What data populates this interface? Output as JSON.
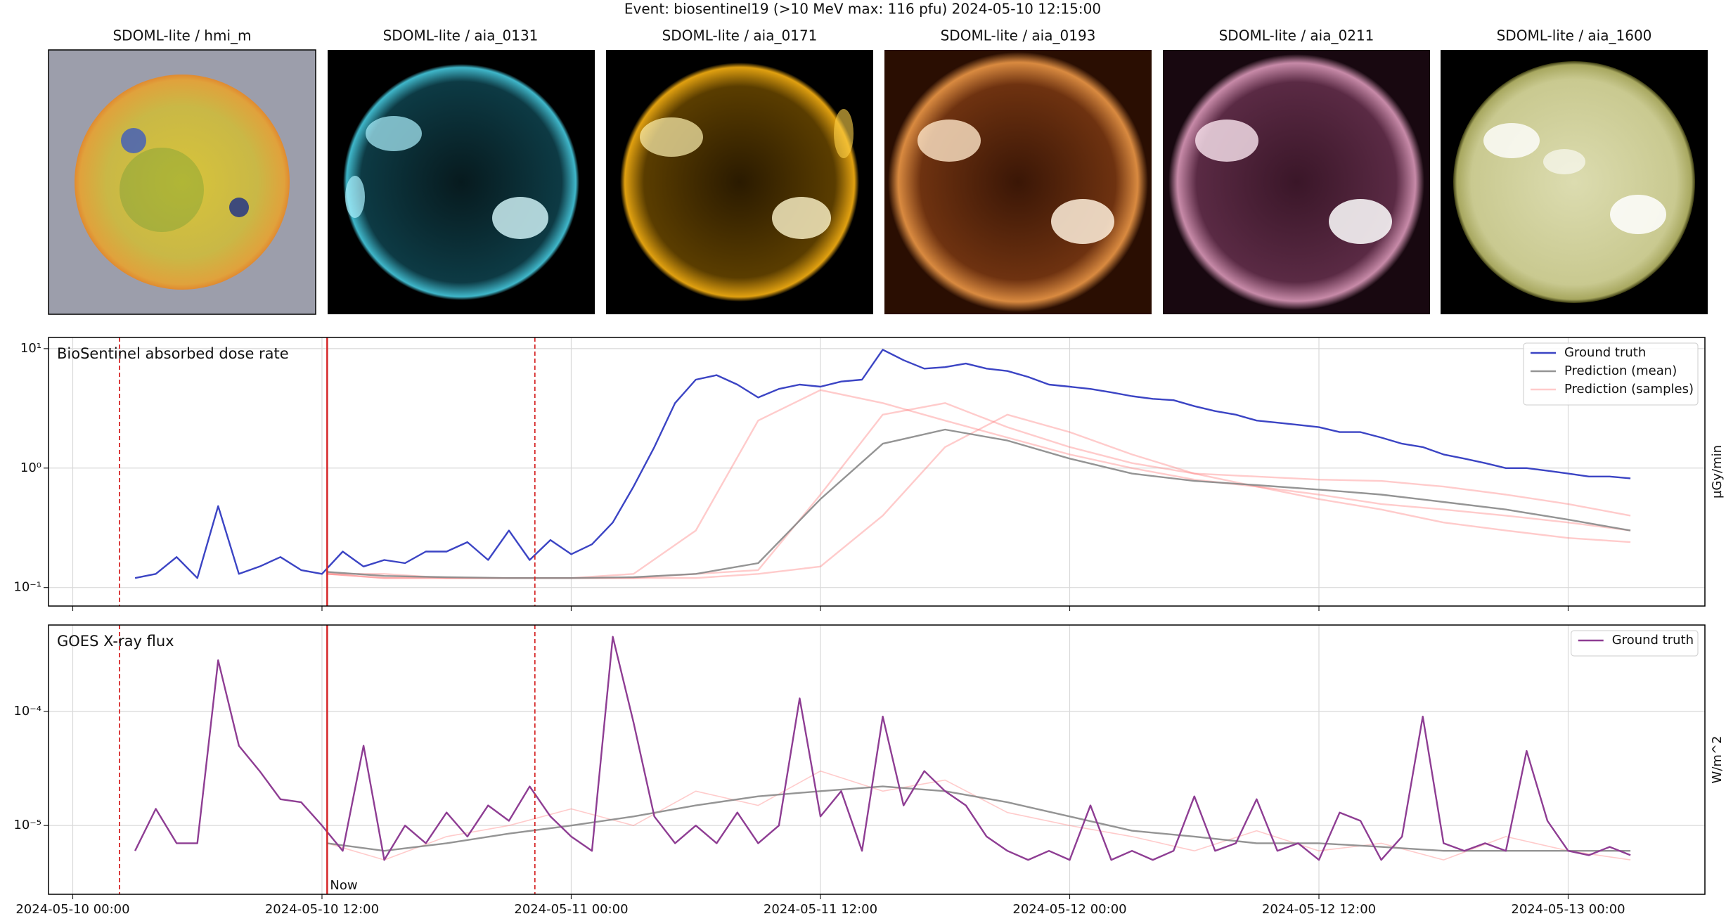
{
  "title": "Event: biosentinel19 (>10 MeV max: 116 pfu) 2024-05-10 12:15:00",
  "panels": [
    {
      "title": "SDOML-lite / hmi_m"
    },
    {
      "title": "SDOML-lite / aia_0131"
    },
    {
      "title": "SDOML-lite / aia_0171"
    },
    {
      "title": "SDOML-lite / aia_0193"
    },
    {
      "title": "SDOML-lite / aia_0211"
    },
    {
      "title": "SDOML-lite / aia_1600"
    }
  ],
  "chart_data": [
    {
      "type": "line",
      "title": "BioSentinel absorbed dose rate",
      "ylabel": "µGy/min",
      "yscale": "log",
      "grid": true,
      "legend": "upper right",
      "show_xtick_labels": false,
      "xlim": [
        "2024-05-09 22:50",
        "2024-05-13 06:35"
      ],
      "xticks": [
        "2024-05-10 00:00",
        "2024-05-10 12:00",
        "2024-05-11 00:00",
        "2024-05-11 12:00",
        "2024-05-12 00:00",
        "2024-05-12 12:00",
        "2024-05-13 00:00"
      ],
      "ylim": [
        0.07,
        12.4
      ],
      "yticks": [
        {
          "value": 0.1,
          "label": "10⁻¹"
        },
        {
          "value": 1,
          "label": "10⁰"
        },
        {
          "value": 10,
          "label": "10¹"
        }
      ],
      "vlines": [
        {
          "x": "2024-05-10 02:15",
          "color": "#d62728",
          "style": "dashed"
        },
        {
          "x": "2024-05-10 12:15",
          "color": "#d62728",
          "style": "solid"
        },
        {
          "x": "2024-05-10 22:15",
          "color": "#d62728",
          "style": "dashed"
        }
      ],
      "x": [
        "2024-05-10 03:00",
        "2024-05-10 04:00",
        "2024-05-10 05:00",
        "2024-05-10 06:00",
        "2024-05-10 07:00",
        "2024-05-10 08:00",
        "2024-05-10 09:00",
        "2024-05-10 10:00",
        "2024-05-10 11:00",
        "2024-05-10 12:00",
        "2024-05-10 13:00",
        "2024-05-10 14:00",
        "2024-05-10 15:00",
        "2024-05-10 16:00",
        "2024-05-10 17:00",
        "2024-05-10 18:00",
        "2024-05-10 19:00",
        "2024-05-10 20:00",
        "2024-05-10 21:00",
        "2024-05-10 22:00",
        "2024-05-10 23:00",
        "2024-05-11 00:00",
        "2024-05-11 01:00",
        "2024-05-11 02:00",
        "2024-05-11 03:00",
        "2024-05-11 04:00",
        "2024-05-11 05:00",
        "2024-05-11 06:00",
        "2024-05-11 07:00",
        "2024-05-11 08:00",
        "2024-05-11 09:00",
        "2024-05-11 10:00",
        "2024-05-11 11:00",
        "2024-05-11 12:00",
        "2024-05-11 13:00",
        "2024-05-11 14:00",
        "2024-05-11 15:00",
        "2024-05-11 16:00",
        "2024-05-11 17:00",
        "2024-05-11 18:00",
        "2024-05-11 19:00",
        "2024-05-11 20:00",
        "2024-05-11 21:00",
        "2024-05-11 22:00",
        "2024-05-11 23:00",
        "2024-05-12 00:00",
        "2024-05-12 01:00",
        "2024-05-12 02:00",
        "2024-05-12 03:00",
        "2024-05-12 04:00",
        "2024-05-12 05:00",
        "2024-05-12 06:00",
        "2024-05-12 07:00",
        "2024-05-12 08:00",
        "2024-05-12 09:00",
        "2024-05-12 10:00",
        "2024-05-12 11:00",
        "2024-05-12 12:00",
        "2024-05-12 13:00",
        "2024-05-12 14:00",
        "2024-05-12 15:00",
        "2024-05-12 16:00",
        "2024-05-12 17:00",
        "2024-05-12 18:00",
        "2024-05-12 19:00",
        "2024-05-12 20:00",
        "2024-05-12 21:00",
        "2024-05-12 22:00",
        "2024-05-12 23:00",
        "2024-05-13 00:00",
        "2024-05-13 01:00",
        "2024-05-13 02:00",
        "2024-05-13 03:00"
      ],
      "series": [
        {
          "name": "Prediction (samples)",
          "color": "#ff6b6b",
          "opacity": 0.35,
          "x": [
            "2024-05-10 12:15",
            "2024-05-10 15:00",
            "2024-05-10 18:00",
            "2024-05-10 21:00",
            "2024-05-11 00:00",
            "2024-05-11 03:00",
            "2024-05-11 06:00",
            "2024-05-11 09:00",
            "2024-05-11 12:00",
            "2024-05-11 15:00",
            "2024-05-11 18:00",
            "2024-05-11 21:00",
            "2024-05-12 00:00",
            "2024-05-12 03:00",
            "2024-05-12 06:00",
            "2024-05-12 09:00",
            "2024-05-12 12:00",
            "2024-05-12 15:00",
            "2024-05-12 18:00",
            "2024-05-12 21:00",
            "2024-05-13 00:00",
            "2024-05-13 03:00"
          ],
          "values": [
            0.13,
            0.13,
            0.12,
            0.12,
            0.12,
            0.13,
            0.3,
            2.5,
            4.5,
            3.5,
            2.5,
            1.8,
            1.3,
            1.0,
            0.8,
            0.7,
            0.6,
            0.5,
            0.45,
            0.4,
            0.35,
            0.3
          ]
        },
        {
          "color": "#ff6b6b",
          "opacity": 0.35,
          "x": [
            "2024-05-10 12:15",
            "2024-05-10 15:00",
            "2024-05-10 18:00",
            "2024-05-10 21:00",
            "2024-05-11 00:00",
            "2024-05-11 03:00",
            "2024-05-11 06:00",
            "2024-05-11 09:00",
            "2024-05-11 12:00",
            "2024-05-11 15:00",
            "2024-05-11 18:00",
            "2024-05-11 21:00",
            "2024-05-12 00:00",
            "2024-05-12 03:00",
            "2024-05-12 06:00",
            "2024-05-12 09:00",
            "2024-05-12 12:00",
            "2024-05-12 15:00",
            "2024-05-12 18:00",
            "2024-05-12 21:00",
            "2024-05-13 00:00",
            "2024-05-13 03:00"
          ],
          "values": [
            0.13,
            0.12,
            0.12,
            0.12,
            0.12,
            0.12,
            0.12,
            0.13,
            0.15,
            0.4,
            1.5,
            2.8,
            2.0,
            1.3,
            0.9,
            0.7,
            0.55,
            0.45,
            0.35,
            0.3,
            0.26,
            0.24
          ]
        },
        {
          "color": "#ff6b6b",
          "opacity": 0.35,
          "x": [
            "2024-05-10 12:15",
            "2024-05-10 15:00",
            "2024-05-10 18:00",
            "2024-05-10 21:00",
            "2024-05-11 00:00",
            "2024-05-11 03:00",
            "2024-05-11 06:00",
            "2024-05-11 09:00",
            "2024-05-11 12:00",
            "2024-05-11 15:00",
            "2024-05-11 18:00",
            "2024-05-11 21:00",
            "2024-05-12 00:00",
            "2024-05-12 03:00",
            "2024-05-12 06:00",
            "2024-05-12 09:00",
            "2024-05-12 12:00",
            "2024-05-12 15:00",
            "2024-05-12 18:00",
            "2024-05-12 21:00",
            "2024-05-13 00:00",
            "2024-05-13 03:00"
          ],
          "values": [
            0.13,
            0.12,
            0.12,
            0.12,
            0.12,
            0.12,
            0.13,
            0.14,
            0.6,
            2.8,
            3.5,
            2.2,
            1.5,
            1.1,
            0.9,
            0.85,
            0.8,
            0.78,
            0.7,
            0.6,
            0.5,
            0.4
          ]
        },
        {
          "name": "Prediction (mean)",
          "color": "#888888",
          "opacity": 0.9,
          "x": [
            "2024-05-10 12:15",
            "2024-05-10 15:00",
            "2024-05-10 18:00",
            "2024-05-10 21:00",
            "2024-05-11 00:00",
            "2024-05-11 03:00",
            "2024-05-11 06:00",
            "2024-05-11 09:00",
            "2024-05-11 12:00",
            "2024-05-11 15:00",
            "2024-05-11 18:00",
            "2024-05-11 21:00",
            "2024-05-12 00:00",
            "2024-05-12 03:00",
            "2024-05-12 06:00",
            "2024-05-12 09:00",
            "2024-05-12 12:00",
            "2024-05-12 15:00",
            "2024-05-12 18:00",
            "2024-05-12 21:00",
            "2024-05-13 00:00",
            "2024-05-13 03:00"
          ],
          "values": [
            0.135,
            0.125,
            0.122,
            0.12,
            0.12,
            0.122,
            0.13,
            0.16,
            0.55,
            1.6,
            2.1,
            1.7,
            1.2,
            0.9,
            0.78,
            0.72,
            0.66,
            0.6,
            0.52,
            0.45,
            0.37,
            0.3
          ]
        },
        {
          "name": "Ground truth",
          "color": "#3b44c4",
          "opacity": 1,
          "values": [
            0.12,
            0.13,
            0.18,
            0.12,
            0.48,
            0.13,
            0.15,
            0.18,
            0.14,
            0.13,
            0.2,
            0.15,
            0.17,
            0.16,
            0.2,
            0.2,
            0.24,
            0.17,
            0.3,
            0.17,
            0.25,
            0.19,
            0.23,
            0.35,
            0.7,
            1.5,
            3.5,
            5.5,
            6.0,
            5.0,
            3.9,
            4.6,
            5.0,
            4.8,
            5.3,
            5.5,
            9.8,
            8.0,
            6.8,
            7.0,
            7.5,
            6.8,
            6.5,
            5.8,
            5.0,
            4.8,
            4.6,
            4.3,
            4.0,
            3.8,
            3.7,
            3.3,
            3.0,
            2.8,
            2.5,
            2.4,
            2.3,
            2.2,
            2.0,
            2.0,
            1.8,
            1.6,
            1.5,
            1.3,
            1.2,
            1.1,
            1.0,
            1.0,
            0.95,
            0.9,
            0.85,
            0.85,
            0.82
          ]
        }
      ],
      "legend_order": [
        4,
        3,
        0
      ]
    },
    {
      "type": "line",
      "title": "GOES X-ray flux",
      "ylabel": "W/m^2",
      "yscale": "log",
      "grid": true,
      "legend": "upper right",
      "show_xtick_labels": true,
      "xlim": [
        "2024-05-09 22:50",
        "2024-05-13 06:35"
      ],
      "xticks": [
        "2024-05-10 00:00",
        "2024-05-10 12:00",
        "2024-05-11 00:00",
        "2024-05-11 12:00",
        "2024-05-12 00:00",
        "2024-05-12 12:00",
        "2024-05-13 00:00"
      ],
      "ylim": [
        2.5e-06,
        0.00057
      ],
      "yticks": [
        {
          "value": 1e-05,
          "label": "10⁻⁵"
        },
        {
          "value": 0.0001,
          "label": "10⁻⁴"
        }
      ],
      "vlines": [
        {
          "x": "2024-05-10 02:15",
          "color": "#d62728",
          "style": "dashed"
        },
        {
          "x": "2024-05-10 12:15",
          "color": "#d62728",
          "style": "solid",
          "label": "Now"
        },
        {
          "x": "2024-05-10 22:15",
          "color": "#d62728",
          "style": "dashed"
        }
      ],
      "x": [
        "2024-05-10 03:00",
        "2024-05-10 04:00",
        "2024-05-10 05:00",
        "2024-05-10 06:00",
        "2024-05-10 07:00",
        "2024-05-10 08:00",
        "2024-05-10 09:00",
        "2024-05-10 10:00",
        "2024-05-10 11:00",
        "2024-05-10 12:00",
        "2024-05-10 13:00",
        "2024-05-10 14:00",
        "2024-05-10 15:00",
        "2024-05-10 16:00",
        "2024-05-10 17:00",
        "2024-05-10 18:00",
        "2024-05-10 19:00",
        "2024-05-10 20:00",
        "2024-05-10 21:00",
        "2024-05-10 22:00",
        "2024-05-10 23:00",
        "2024-05-11 00:00",
        "2024-05-11 01:00",
        "2024-05-11 02:00",
        "2024-05-11 03:00",
        "2024-05-11 04:00",
        "2024-05-11 05:00",
        "2024-05-11 06:00",
        "2024-05-11 07:00",
        "2024-05-11 08:00",
        "2024-05-11 09:00",
        "2024-05-11 10:00",
        "2024-05-11 11:00",
        "2024-05-11 12:00",
        "2024-05-11 13:00",
        "2024-05-11 14:00",
        "2024-05-11 15:00",
        "2024-05-11 16:00",
        "2024-05-11 17:00",
        "2024-05-11 18:00",
        "2024-05-11 19:00",
        "2024-05-11 20:00",
        "2024-05-11 21:00",
        "2024-05-11 22:00",
        "2024-05-11 23:00",
        "2024-05-12 00:00",
        "2024-05-12 01:00",
        "2024-05-12 02:00",
        "2024-05-12 03:00",
        "2024-05-12 04:00",
        "2024-05-12 05:00",
        "2024-05-12 06:00",
        "2024-05-12 07:00",
        "2024-05-12 08:00",
        "2024-05-12 09:00",
        "2024-05-12 10:00",
        "2024-05-12 11:00",
        "2024-05-12 12:00",
        "2024-05-12 13:00",
        "2024-05-12 14:00",
        "2024-05-12 15:00",
        "2024-05-12 16:00",
        "2024-05-12 17:00",
        "2024-05-12 18:00",
        "2024-05-12 19:00",
        "2024-05-12 20:00",
        "2024-05-12 21:00",
        "2024-05-12 22:00",
        "2024-05-12 23:00",
        "2024-05-13 00:00",
        "2024-05-13 01:00",
        "2024-05-13 02:00",
        "2024-05-13 03:00"
      ],
      "series": [
        {
          "color": "#ff6b6b",
          "opacity": 0.35,
          "x": [
            "2024-05-10 12:15",
            "2024-05-10 15:00",
            "2024-05-10 18:00",
            "2024-05-10 21:00",
            "2024-05-11 00:00",
            "2024-05-11 03:00",
            "2024-05-11 06:00",
            "2024-05-11 09:00",
            "2024-05-11 12:00",
            "2024-05-11 15:00",
            "2024-05-11 18:00",
            "2024-05-11 21:00",
            "2024-05-12 00:00",
            "2024-05-12 03:00",
            "2024-05-12 06:00",
            "2024-05-12 09:00",
            "2024-05-12 12:00",
            "2024-05-12 15:00",
            "2024-05-12 18:00",
            "2024-05-12 21:00",
            "2024-05-13 00:00",
            "2024-05-13 03:00"
          ],
          "values": [
            7e-06,
            5e-06,
            8e-06,
            1e-05,
            1.4e-05,
            1e-05,
            2e-05,
            1.5e-05,
            3e-05,
            2e-05,
            2.5e-05,
            1.3e-05,
            1e-05,
            8e-06,
            6e-06,
            9e-06,
            6e-06,
            7e-06,
            5e-06,
            8e-06,
            6e-06,
            5e-06
          ]
        },
        {
          "color": "#888888",
          "opacity": 0.9,
          "x": [
            "2024-05-10 12:15",
            "2024-05-10 15:00",
            "2024-05-10 18:00",
            "2024-05-10 21:00",
            "2024-05-11 00:00",
            "2024-05-11 03:00",
            "2024-05-11 06:00",
            "2024-05-11 09:00",
            "2024-05-11 12:00",
            "2024-05-11 15:00",
            "2024-05-11 18:00",
            "2024-05-11 21:00",
            "2024-05-12 00:00",
            "2024-05-12 03:00",
            "2024-05-12 06:00",
            "2024-05-12 09:00",
            "2024-05-12 12:00",
            "2024-05-12 15:00",
            "2024-05-12 18:00",
            "2024-05-12 21:00",
            "2024-05-13 00:00",
            "2024-05-13 03:00"
          ],
          "values": [
            7e-06,
            6e-06,
            7e-06,
            8.5e-06,
            1e-05,
            1.2e-05,
            1.5e-05,
            1.8e-05,
            2e-05,
            2.2e-05,
            2e-05,
            1.6e-05,
            1.2e-05,
            9e-06,
            8e-06,
            7e-06,
            7e-06,
            6.5e-06,
            6e-06,
            6e-06,
            6e-06,
            6e-06
          ]
        },
        {
          "name": "Ground truth",
          "color": "#8e3d93",
          "opacity": 1,
          "values": [
            6e-06,
            1.4e-05,
            7e-06,
            7e-06,
            0.00028,
            5e-05,
            3e-05,
            1.7e-05,
            1.6e-05,
            1e-05,
            6e-06,
            5e-05,
            5e-06,
            1e-05,
            7e-06,
            1.3e-05,
            8e-06,
            1.5e-05,
            1.1e-05,
            2.2e-05,
            1.2e-05,
            8e-06,
            6e-06,
            0.00045,
            8e-05,
            1.2e-05,
            7e-06,
            1e-05,
            7e-06,
            1.3e-05,
            7e-06,
            1e-05,
            0.00013,
            1.2e-05,
            2e-05,
            6e-06,
            9e-05,
            1.5e-05,
            3e-05,
            2e-05,
            1.5e-05,
            8e-06,
            6e-06,
            5e-06,
            6e-06,
            5e-06,
            1.5e-05,
            5e-06,
            6e-06,
            5e-06,
            6e-06,
            1.8e-05,
            6e-06,
            7e-06,
            1.7e-05,
            6e-06,
            7e-06,
            5e-06,
            1.3e-05,
            1.1e-05,
            5e-06,
            8e-06,
            9e-05,
            7e-06,
            6e-06,
            7e-06,
            6e-06,
            4.5e-05,
            1.1e-05,
            6e-06,
            5.5e-06,
            6.5e-06,
            5.5e-06
          ]
        }
      ],
      "legend_order": [
        2
      ]
    }
  ]
}
